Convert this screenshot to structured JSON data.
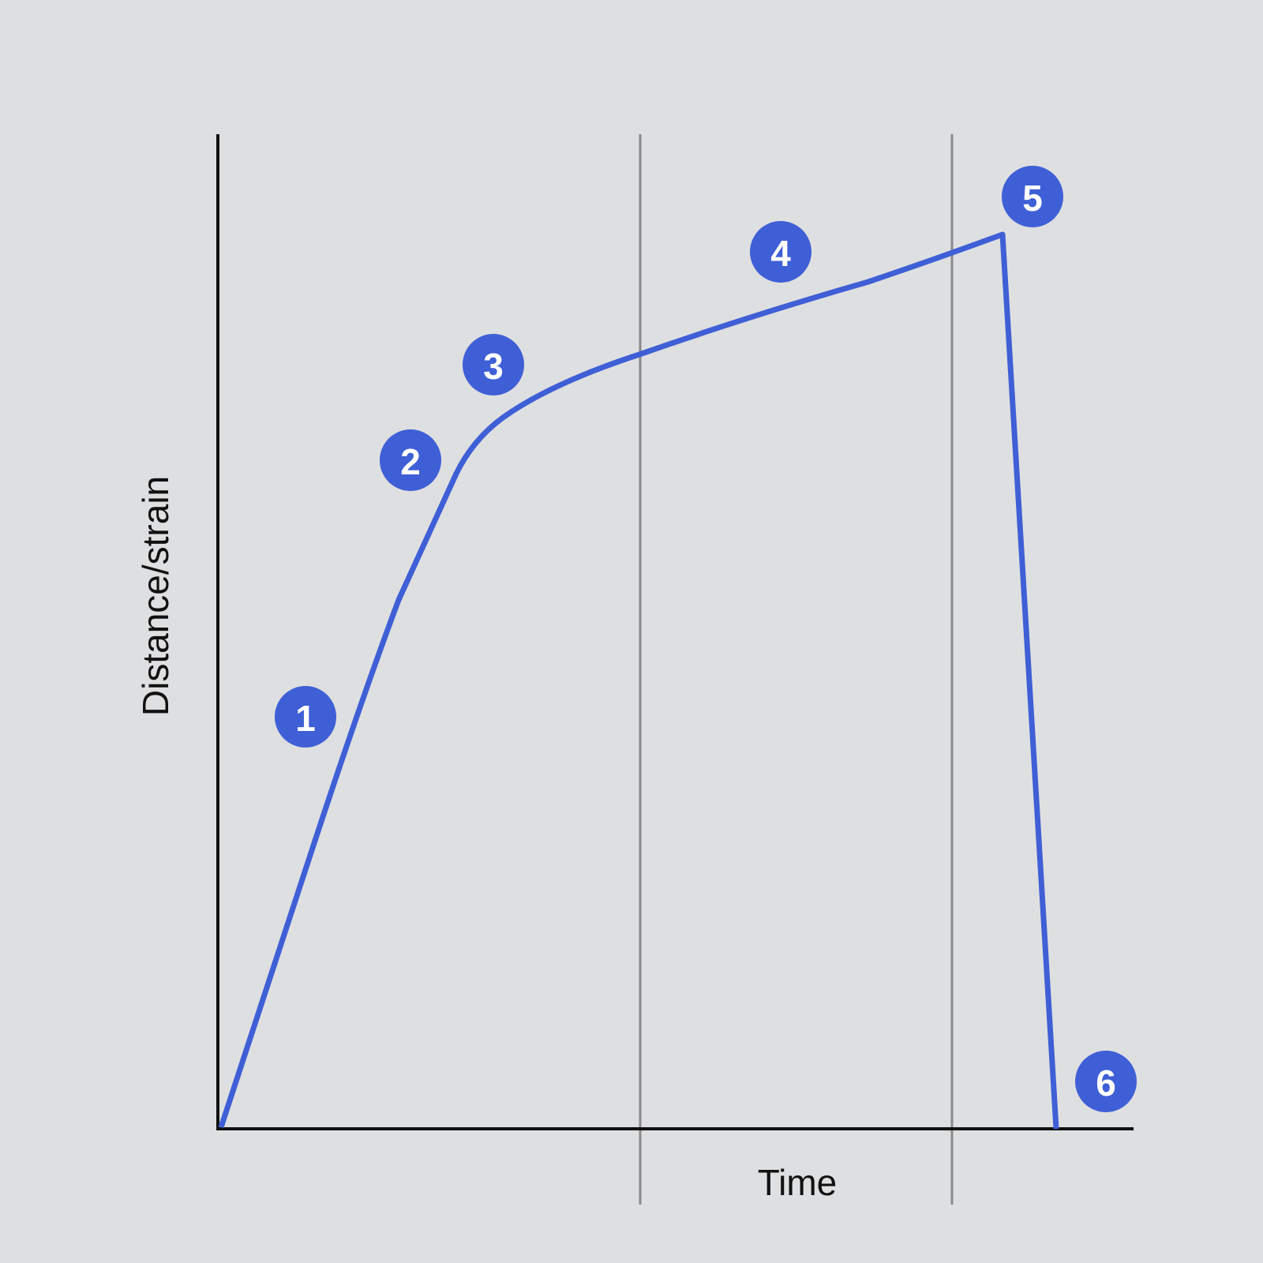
{
  "axes": {
    "y_label": "Distance/strain",
    "x_label": "Time"
  },
  "markers": [
    {
      "label": "1"
    },
    {
      "label": "2"
    },
    {
      "label": "3"
    },
    {
      "label": "4"
    },
    {
      "label": "5"
    },
    {
      "label": "6"
    }
  ]
}
